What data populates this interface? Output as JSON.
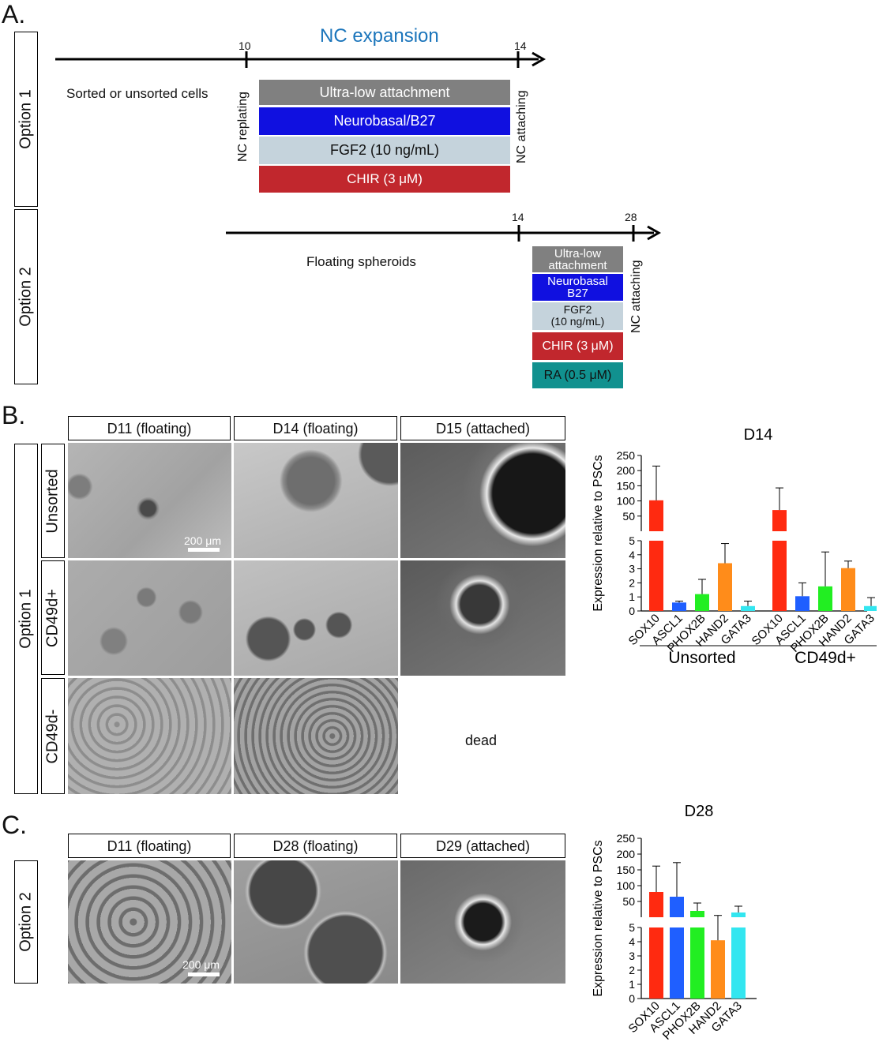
{
  "panelA": {
    "letter": "A.",
    "option1": {
      "label": "Option 1",
      "title": "NC expansion",
      "tick_start": "10",
      "tick_end": "14",
      "left_text": "Sorted or unsorted cells",
      "start_label": "NC replating",
      "end_label": "NC attaching",
      "bars": [
        {
          "text": "Ultra-low attachment",
          "color": "#808080"
        },
        {
          "text": "Neurobasal/B27",
          "color": "#1010e0"
        },
        {
          "text": "FGF2 (10 ng/mL)",
          "color": "#c5d3dc"
        },
        {
          "text": "CHIR (3 μM)",
          "color": "#c1272d"
        }
      ]
    },
    "option2": {
      "label": "Option 2",
      "tick_start": "14",
      "tick_end": "28",
      "left_text": "Floating spheroids",
      "end_label": "NC attaching",
      "bars": [
        {
          "line1": "Ultra-low",
          "line2": "attachment",
          "color": "#808080"
        },
        {
          "line1": "Neurobasal",
          "line2": "B27",
          "color": "#1010e0"
        },
        {
          "line1": "FGF2",
          "line2": "(10 ng/mL)",
          "color": "#c5d3dc"
        },
        {
          "line1": "CHIR (3 μM)",
          "line2": "",
          "color": "#c1272d"
        },
        {
          "line1": "RA (0.5 μM)",
          "line2": "",
          "color": "#11918f"
        }
      ]
    }
  },
  "panelB": {
    "letter": "B.",
    "option_label": "Option 1",
    "col_headers": [
      "D11 (floating)",
      "D14 (floating)",
      "D15 (attached)"
    ],
    "row_labels": [
      "Unsorted",
      "CD49d+",
      "CD49d-"
    ],
    "scale_bar": "200 μm",
    "dead_text": "dead"
  },
  "panelC": {
    "letter": "C.",
    "option_label": "Option 2",
    "col_headers": [
      "D11 (floating)",
      "D28 (floating)",
      "D29 (attached)"
    ],
    "scale_bar": "200 μm"
  },
  "chart_data": [
    {
      "type": "bar",
      "title": "D14",
      "ylabel": "Expression relative to PSCs",
      "y_lower_ticks": [
        "0",
        "1",
        "2",
        "3",
        "4",
        "5"
      ],
      "y_upper_ticks": [
        "50",
        "100",
        "150",
        "200",
        "250"
      ],
      "axis_break": true,
      "groups": [
        {
          "name": "Unsorted",
          "categories": [
            "SOX10",
            "ASCL1",
            "PHOX2B",
            "HAND2",
            "GATA3"
          ],
          "values": [
            102,
            0.6,
            1.2,
            3.4,
            0.35
          ],
          "errors": [
            113,
            0.1,
            1.05,
            1.4,
            0.35
          ]
        },
        {
          "name": "CD49d+",
          "categories": [
            "SOX10",
            "ASCL1",
            "PHOX2B",
            "HAND2",
            "GATA3"
          ],
          "values": [
            70,
            1.05,
            1.75,
            3.05,
            0.35
          ],
          "errors": [
            73,
            0.95,
            2.45,
            0.5,
            0.6
          ]
        }
      ],
      "colors": [
        "#ff2a10",
        "#1f5fff",
        "#22ee22",
        "#ff8c1a",
        "#33e6f0"
      ]
    },
    {
      "type": "bar",
      "title": "D28",
      "ylabel": "Expression relative to PSCs",
      "y_lower_ticks": [
        "0",
        "1",
        "2",
        "3",
        "4",
        "5"
      ],
      "y_upper_ticks": [
        "50",
        "100",
        "150",
        "200",
        "250"
      ],
      "axis_break": true,
      "categories": [
        "SOX10",
        "ASCL1",
        "PHOX2B",
        "HAND2",
        "GATA3"
      ],
      "values": [
        80,
        65,
        20,
        4.1,
        15
      ],
      "errors": [
        82,
        108,
        25,
        1.6,
        20
      ],
      "colors": [
        "#ff2a10",
        "#1f5fff",
        "#22ee22",
        "#ff8c1a",
        "#33e6f0"
      ]
    }
  ]
}
